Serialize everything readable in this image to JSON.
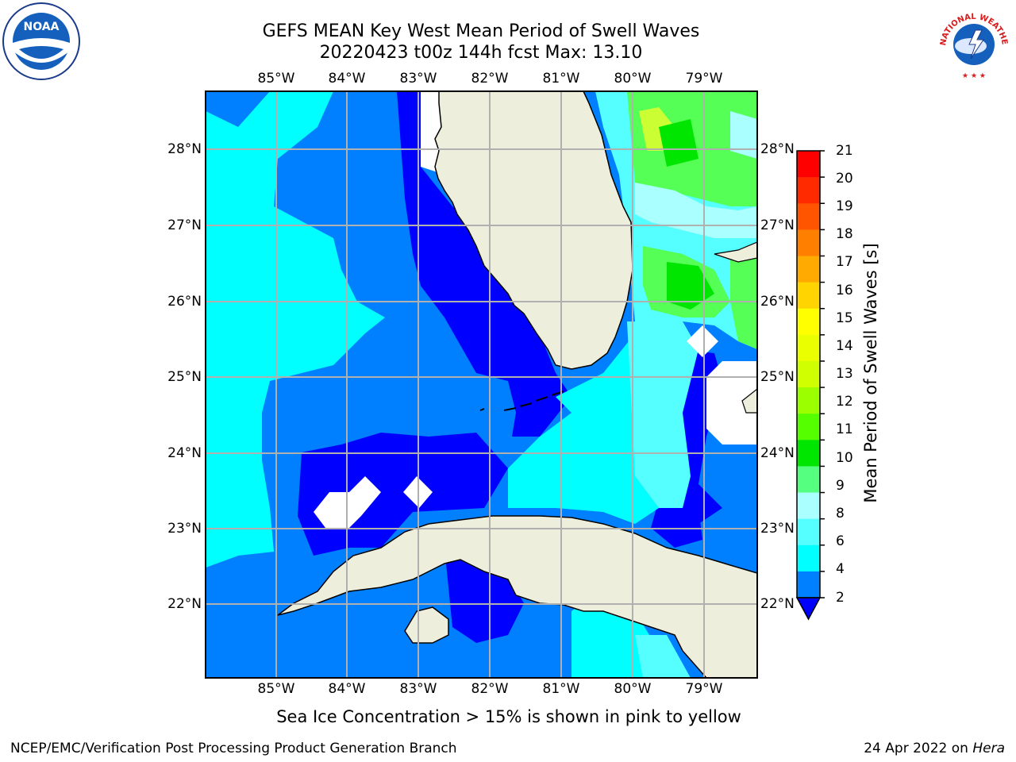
{
  "title": {
    "line1": "GEFS MEAN Key West Mean Period of Swell Waves",
    "line2": "20220423 t00z 144h fcst   Max: 13.10"
  },
  "axes": {
    "longitudes": [
      "85°W",
      "84°W",
      "83°W",
      "82°W",
      "81°W",
      "80°W",
      "79°W"
    ],
    "latitudes": [
      "28°N",
      "27°N",
      "26°N",
      "25°N",
      "24°N",
      "23°N",
      "22°N"
    ]
  },
  "colorbar": {
    "label": "Mean Period of Swell Waves [s]",
    "ticks": [
      "21",
      "20",
      "19",
      "18",
      "17",
      "16",
      "15",
      "14",
      "13",
      "12",
      "11",
      "10",
      "9",
      "8",
      "6",
      "4",
      "2"
    ],
    "colors": [
      "#ff0000",
      "#ff2a00",
      "#ff5500",
      "#ff7f00",
      "#ffaa00",
      "#ffd400",
      "#ffff00",
      "#eaff00",
      "#cfff00",
      "#9cff00",
      "#55ff00",
      "#00e600",
      "#55ff7f",
      "#aaffff",
      "#55ffff",
      "#00ffff",
      "#0080ff",
      "#0000ff"
    ]
  },
  "map_colors": {
    "land": "#eeeedd",
    "ocean_deep": "#0000ff",
    "ocean_mid": "#0080ff",
    "ocean_cyan": "#00ffff",
    "ocean_lightcyan": "#55ffff",
    "ocean_paleblue": "#aaffff",
    "green": "#55ff55",
    "green_dark": "#00e600",
    "yellowgreen": "#ccff33",
    "grid": "#b0b0b0"
  },
  "footnote": "Sea Ice Concentration > 15% is shown in pink to yellow",
  "credit": "NCEP/EMC/Verification Post Processing Product Generation Branch",
  "date": {
    "text": "24 Apr 2022 on ",
    "host": "Hera"
  },
  "logos": {
    "left": "noaa-logo",
    "right": "national-weather-service-logo",
    "right_text": "NATIONAL WEATHER SERVICE"
  }
}
